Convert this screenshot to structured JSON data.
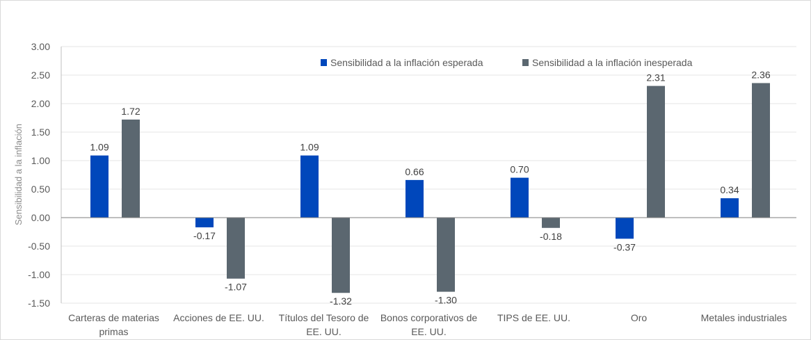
{
  "chart_data": {
    "type": "bar",
    "title": "",
    "xlabel": "",
    "ylabel": "Sensibilidad a la inflación",
    "ylim": [
      -1.5,
      3.0
    ],
    "yticks": [
      "3.00",
      "2.50",
      "2.00",
      "1.50",
      "1.00",
      "0.50",
      "0.00",
      "-0.50",
      "-1.00",
      "-1.50"
    ],
    "categories": [
      [
        "Carteras de materias",
        "primas"
      ],
      [
        "Acciones de EE. UU."
      ],
      [
        "Títulos del Tesoro de",
        "EE. UU."
      ],
      [
        "Bonos corporativos de",
        "EE. UU."
      ],
      [
        "TIPS de EE. UU."
      ],
      [
        "Oro"
      ],
      [
        "Metales industriales"
      ]
    ],
    "series": [
      {
        "name": "Sensibilidad a la inflación esperada",
        "color": "#0047bb",
        "values": [
          1.09,
          -0.17,
          1.09,
          0.66,
          0.7,
          -0.37,
          0.34
        ],
        "labels": [
          "1.09",
          "-0.17",
          "1.09",
          "0.66",
          "0.70",
          "-0.37",
          "0.34"
        ]
      },
      {
        "name": "Sensibilidad a la inflación inesperada",
        "color": "#5b6770",
        "values": [
          1.72,
          -1.07,
          -1.32,
          -1.3,
          -0.18,
          2.31,
          2.36
        ],
        "labels": [
          "1.72",
          "-1.07",
          "-1.32",
          "-1.30",
          "-0.18",
          "2.31",
          "2.36"
        ]
      }
    ],
    "legend_position": "top-right",
    "grid": true
  }
}
